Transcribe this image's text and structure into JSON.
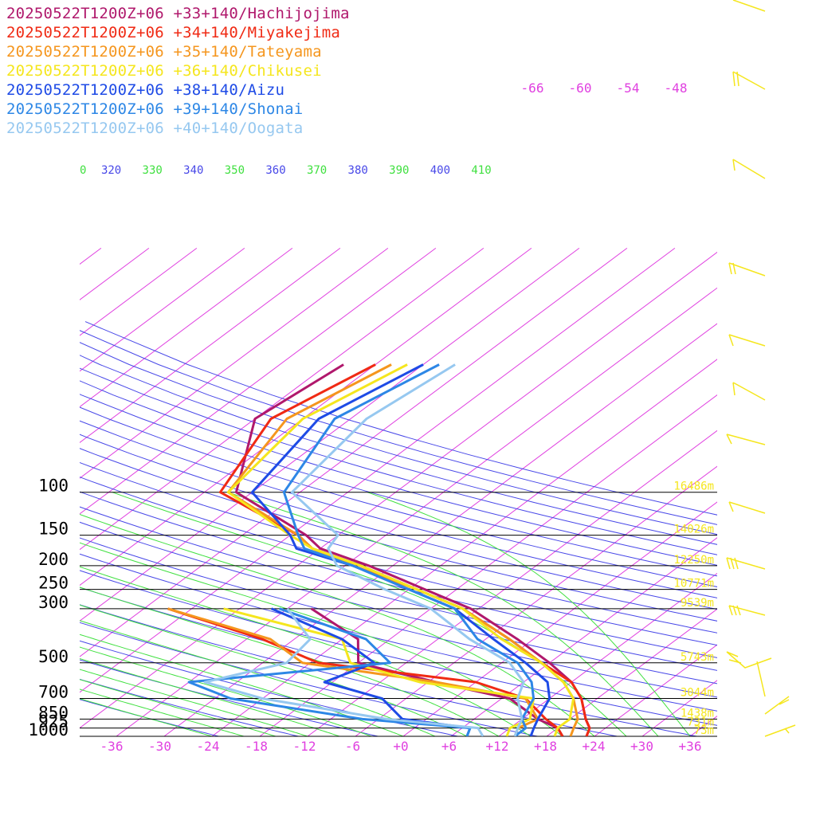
{
  "chart_data": {
    "type": "line",
    "series": [
      {
        "name": "20250522T1200Z+06 +33+140/Hachijojima",
        "color": "#b0186c",
        "temperature": [
          [
            1000,
            23
          ],
          [
            925,
            22
          ],
          [
            850,
            20
          ],
          [
            700,
            16
          ],
          [
            600,
            12
          ],
          [
            500,
            6
          ],
          [
            400,
            -2
          ],
          [
            300,
            -13
          ],
          [
            250,
            -22
          ],
          [
            200,
            -33
          ],
          [
            170,
            -42
          ],
          [
            150,
            -46
          ],
          [
            100,
            -62
          ],
          [
            50,
            -72
          ],
          [
            30,
            -70
          ]
        ],
        "dewpoint": [
          [
            1000,
            20
          ],
          [
            925,
            18
          ],
          [
            850,
            14
          ],
          [
            700,
            7
          ],
          [
            600,
            -5
          ],
          [
            500,
            -18
          ],
          [
            400,
            -22
          ],
          [
            300,
            -33
          ]
        ]
      },
      {
        "name": "20250522T1200Z+06 +34+140/Miyakejima",
        "color": "#f02a14",
        "temperature": [
          [
            1000,
            23
          ],
          [
            925,
            22
          ],
          [
            850,
            20
          ],
          [
            700,
            16
          ],
          [
            600,
            12
          ],
          [
            500,
            5
          ],
          [
            400,
            -3
          ],
          [
            300,
            -14
          ],
          [
            250,
            -23
          ],
          [
            200,
            -34
          ],
          [
            170,
            -43
          ],
          [
            150,
            -47
          ],
          [
            100,
            -64
          ],
          [
            50,
            -70
          ],
          [
            30,
            -66
          ]
        ],
        "dewpoint": [
          [
            1000,
            20
          ],
          [
            925,
            18
          ],
          [
            850,
            15
          ],
          [
            700,
            9
          ],
          [
            600,
            0
          ],
          [
            500,
            -23
          ],
          [
            400,
            -34
          ],
          [
            300,
            -51
          ]
        ]
      },
      {
        "name": "20250522T1200Z+06 +35+140/Tateyama",
        "color": "#f5961e",
        "temperature": [
          [
            1000,
            21
          ],
          [
            925,
            20
          ],
          [
            850,
            19
          ],
          [
            700,
            15
          ],
          [
            600,
            11
          ],
          [
            500,
            5
          ],
          [
            400,
            -3
          ],
          [
            300,
            -14
          ],
          [
            250,
            -23
          ],
          [
            200,
            -35
          ],
          [
            170,
            -43
          ],
          [
            150,
            -47
          ],
          [
            100,
            -63
          ],
          [
            50,
            -68
          ],
          [
            30,
            -64
          ]
        ],
        "dewpoint": [
          [
            1000,
            14
          ],
          [
            925,
            13
          ],
          [
            850,
            14
          ],
          [
            700,
            9
          ],
          [
            600,
            -5
          ],
          [
            500,
            -25
          ],
          [
            400,
            -33
          ],
          [
            300,
            -51
          ]
        ]
      },
      {
        "name": "20250522T1200Z+06 +36+140/Chikusei",
        "color": "#f5e61e",
        "temperature": [
          [
            1000,
            19
          ],
          [
            925,
            18
          ],
          [
            850,
            18
          ],
          [
            700,
            15
          ],
          [
            600,
            11
          ],
          [
            500,
            5
          ],
          [
            400,
            -4
          ],
          [
            300,
            -14
          ],
          [
            250,
            -23
          ],
          [
            200,
            -34
          ],
          [
            170,
            -43
          ],
          [
            150,
            -48
          ],
          [
            100,
            -63
          ],
          [
            50,
            -66
          ],
          [
            30,
            -62
          ]
        ],
        "dewpoint": [
          [
            1000,
            13
          ],
          [
            925,
            12
          ],
          [
            850,
            13
          ],
          [
            700,
            10
          ],
          [
            600,
            -7
          ],
          [
            500,
            -19
          ],
          [
            400,
            -24
          ],
          [
            300,
            -44
          ]
        ]
      },
      {
        "name": "20250522T1200Z+06 +38+140/Aizu",
        "color": "#1e4be6",
        "temperature": [
          [
            1000,
            16
          ],
          [
            925,
            15
          ],
          [
            850,
            14
          ],
          [
            700,
            12
          ],
          [
            600,
            9
          ],
          [
            500,
            3
          ],
          [
            400,
            -5
          ],
          [
            300,
            -15
          ],
          [
            250,
            -24
          ],
          [
            200,
            -35
          ],
          [
            170,
            -45
          ],
          [
            150,
            -48
          ],
          [
            100,
            -60
          ],
          [
            50,
            -64
          ],
          [
            30,
            -60
          ]
        ],
        "dewpoint": [
          [
            1000,
            8
          ],
          [
            925,
            7
          ],
          [
            850,
            -3
          ],
          [
            700,
            -9
          ],
          [
            600,
            -19
          ],
          [
            500,
            -16
          ],
          [
            400,
            -24
          ],
          [
            300,
            -38
          ]
        ]
      },
      {
        "name": "20250522T1200Z+06 +39+140/Shonai",
        "color": "#2d87e6",
        "temperature": [
          [
            1000,
            14
          ],
          [
            925,
            14
          ],
          [
            850,
            12
          ],
          [
            700,
            10
          ],
          [
            600,
            7
          ],
          [
            500,
            2
          ],
          [
            400,
            -7
          ],
          [
            300,
            -15
          ],
          [
            250,
            -24
          ],
          [
            200,
            -35
          ],
          [
            170,
            -44
          ],
          [
            150,
            -47
          ],
          [
            100,
            -56
          ],
          [
            50,
            -62
          ],
          [
            30,
            -58
          ]
        ],
        "dewpoint": [
          [
            1000,
            8
          ],
          [
            925,
            7
          ],
          [
            850,
            -8
          ],
          [
            700,
            -28
          ],
          [
            600,
            -36
          ],
          [
            500,
            -14
          ],
          [
            400,
            -21
          ],
          [
            300,
            -37
          ]
        ]
      },
      {
        "name": "20250522T1200Z+06 +40+140/Oogata",
        "color": "#96c8f0",
        "temperature": [
          [
            1000,
            14
          ],
          [
            925,
            13
          ],
          [
            850,
            12
          ],
          [
            700,
            8
          ],
          [
            600,
            6
          ],
          [
            500,
            1
          ],
          [
            400,
            -8
          ],
          [
            300,
            -18
          ],
          [
            250,
            -27
          ],
          [
            200,
            -37
          ],
          [
            170,
            -41
          ],
          [
            150,
            -42
          ],
          [
            100,
            -55
          ],
          [
            50,
            -58
          ],
          [
            30,
            -56
          ]
        ],
        "dewpoint": [
          [
            1000,
            10
          ],
          [
            925,
            8
          ],
          [
            850,
            -5
          ],
          [
            700,
            -24
          ],
          [
            600,
            -34
          ],
          [
            500,
            -27
          ],
          [
            400,
            -28
          ],
          [
            300,
            -36
          ]
        ]
      }
    ],
    "x_ticks": [
      "-36",
      "-30",
      "-24",
      "-18",
      "-12",
      "-6",
      "+0",
      "+6",
      "+12",
      "+18",
      "+24",
      "+30",
      "+36"
    ],
    "pressure_levels": [
      {
        "p": 100,
        "label": "100",
        "height": "16486m"
      },
      {
        "p": 150,
        "label": "150",
        "height": "14026m"
      },
      {
        "p": 200,
        "label": "200",
        "height": "12250m"
      },
      {
        "p": 250,
        "label": "250",
        "height": "10771m"
      },
      {
        "p": 300,
        "label": "300",
        "height": "9539m"
      },
      {
        "p": 500,
        "label": "500",
        "height": "5743m"
      },
      {
        "p": 700,
        "label": "700",
        "height": "3044m"
      },
      {
        "p": 850,
        "label": "850",
        "height": "1438m"
      },
      {
        "p": 925,
        "label": "925",
        "height": "731m"
      },
      {
        "p": 1000,
        "label": "1000",
        "height": "73m"
      }
    ],
    "isotherm_labels": [
      "-66",
      "-60",
      "-54",
      "-48"
    ],
    "theta_labels": [
      "0",
      "320",
      "330",
      "340",
      "350",
      "360",
      "370",
      "380",
      "390",
      "400",
      "410"
    ],
    "xlim": [
      -39,
      41
    ],
    "ylim": [
      1000,
      100
    ],
    "y_scale": "log"
  },
  "colors": {
    "isotherm": "#e040e0",
    "dry_adiabat": "#4848e8",
    "moist_adiabat": "#40e040",
    "height_label": "#f5e61e",
    "wind_barb": "#f5e61e"
  }
}
